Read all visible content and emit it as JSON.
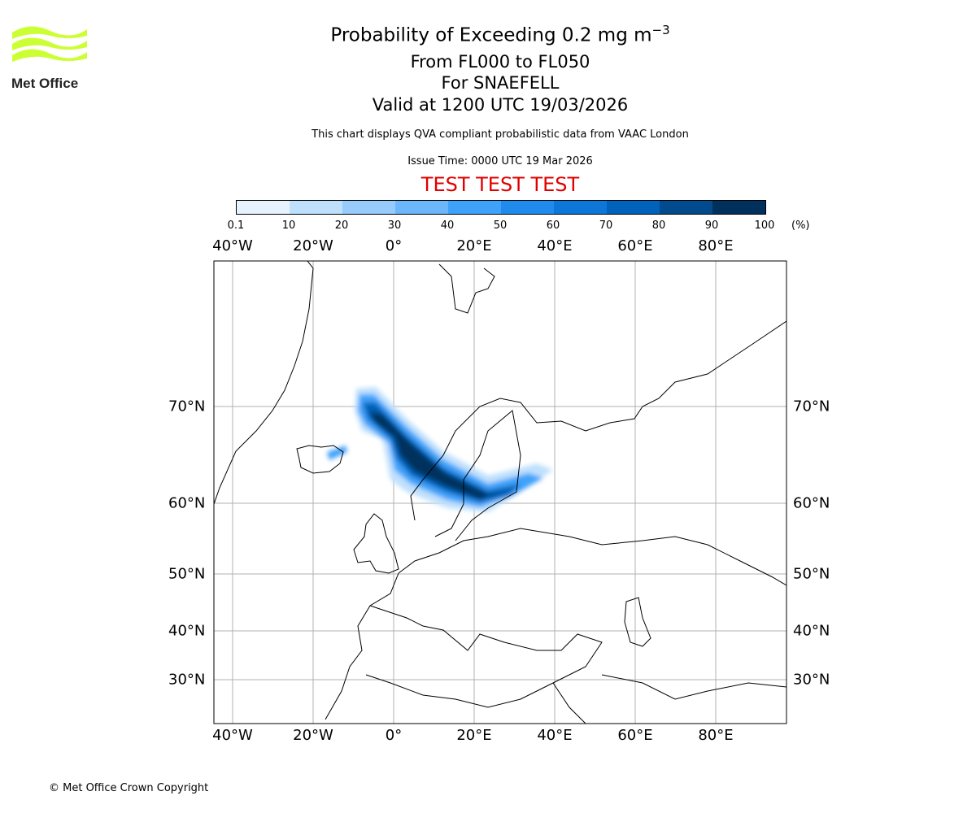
{
  "logo": {
    "text": "Met Office",
    "color": "#ccff33"
  },
  "title": {
    "line1_prefix": "Probability of Exceeding 0.2 mg m",
    "line1_sup": "−3",
    "line2": "From FL000 to FL050",
    "line3": "For SNAEFELL",
    "line4": "Valid at 1200 UTC 19/03/2026",
    "subtitle": "This chart displays QVA compliant probabilistic data from VAAC London",
    "issue_time": "Issue Time: 0000 UTC 19 Mar 2026",
    "test_banner": "TEST TEST TEST",
    "test_color": "#e00000"
  },
  "colorbar": {
    "ticks": [
      "0.1",
      "10",
      "20",
      "30",
      "40",
      "50",
      "60",
      "70",
      "80",
      "90",
      "100"
    ],
    "unit": "(%)",
    "colors": [
      "#e6f3fe",
      "#bfe0fd",
      "#96cbfc",
      "#6cb6fb",
      "#3fa2fa",
      "#1f8bed",
      "#0d76d9",
      "#0062ba",
      "#014a8d",
      "#01305d"
    ]
  },
  "map": {
    "lon_labels": [
      {
        "lon": -40,
        "label": "40°W"
      },
      {
        "lon": -20,
        "label": "20°W"
      },
      {
        "lon": 0,
        "label": "0°"
      },
      {
        "lon": 20,
        "label": "20°E"
      },
      {
        "lon": 40,
        "label": "40°E"
      },
      {
        "lon": 60,
        "label": "60°E"
      },
      {
        "lon": 80,
        "label": "80°E"
      }
    ],
    "lat_labels": [
      {
        "lat": 70,
        "label": "70°N"
      },
      {
        "lat": 60,
        "label": "60°N"
      },
      {
        "lat": 50,
        "label": "50°N"
      },
      {
        "lat": 40,
        "label": "40°N"
      },
      {
        "lat": 30,
        "label": "30°N"
      }
    ]
  },
  "footer": {
    "copyright": "© Met Office Crown Copyright"
  }
}
